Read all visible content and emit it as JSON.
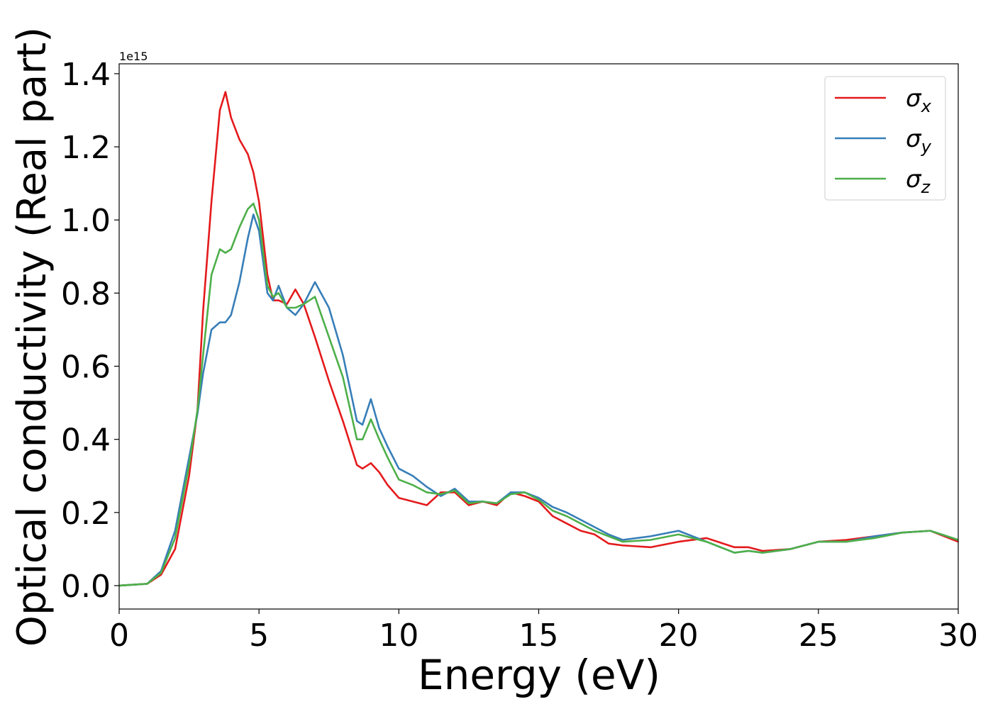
{
  "chart_data": {
    "type": "line",
    "xlabel": "Energy (eV)",
    "ylabel": "Optical conductivity (Real part)",
    "offset_label": "1e15",
    "x": [
      0,
      1,
      1.5,
      2,
      2.5,
      2.8,
      3,
      3.3,
      3.6,
      3.8,
      4,
      4.3,
      4.6,
      4.8,
      5,
      5.3,
      5.5,
      5.7,
      6,
      6.3,
      6.6,
      7,
      7.5,
      8,
      8.5,
      8.7,
      9,
      9.3,
      9.6,
      10,
      10.5,
      11,
      11.5,
      12,
      12.5,
      13,
      13.5,
      14,
      14.5,
      15,
      15.5,
      16,
      16.5,
      17,
      17.5,
      18,
      19,
      20,
      21,
      22,
      22.5,
      23,
      24,
      25,
      26,
      27,
      28,
      29,
      30
    ],
    "series": [
      {
        "name": "σx",
        "color": "#e41a1c",
        "values": [
          0,
          0.005,
          0.03,
          0.1,
          0.3,
          0.48,
          0.75,
          1.05,
          1.3,
          1.35,
          1.28,
          1.22,
          1.18,
          1.13,
          1.05,
          0.85,
          0.78,
          0.78,
          0.77,
          0.81,
          0.77,
          0.68,
          0.56,
          0.45,
          0.33,
          0.32,
          0.335,
          0.31,
          0.275,
          0.24,
          0.23,
          0.22,
          0.255,
          0.255,
          0.22,
          0.23,
          0.22,
          0.255,
          0.245,
          0.23,
          0.19,
          0.17,
          0.15,
          0.14,
          0.115,
          0.11,
          0.105,
          0.12,
          0.13,
          0.105,
          0.105,
          0.095,
          0.1,
          0.12,
          0.125,
          0.135,
          0.145,
          0.15,
          0.12
        ]
      },
      {
        "name": "σy",
        "color": "#377eb8",
        "values": [
          0,
          0.005,
          0.04,
          0.15,
          0.35,
          0.47,
          0.58,
          0.7,
          0.72,
          0.72,
          0.74,
          0.83,
          0.95,
          1.015,
          0.97,
          0.8,
          0.78,
          0.82,
          0.76,
          0.74,
          0.77,
          0.83,
          0.76,
          0.63,
          0.45,
          0.44,
          0.51,
          0.43,
          0.38,
          0.32,
          0.3,
          0.27,
          0.245,
          0.265,
          0.23,
          0.23,
          0.225,
          0.255,
          0.255,
          0.24,
          0.215,
          0.2,
          0.18,
          0.16,
          0.14,
          0.125,
          0.135,
          0.15,
          0.12,
          0.09,
          0.095,
          0.09,
          0.1,
          0.12,
          0.12,
          0.135,
          0.145,
          0.15,
          0.125
        ]
      },
      {
        "name": "σz",
        "color": "#4daf4a",
        "values": [
          0,
          0.005,
          0.035,
          0.13,
          0.33,
          0.48,
          0.63,
          0.85,
          0.92,
          0.91,
          0.92,
          0.98,
          1.03,
          1.045,
          1.0,
          0.82,
          0.79,
          0.8,
          0.76,
          0.76,
          0.77,
          0.79,
          0.68,
          0.57,
          0.4,
          0.4,
          0.455,
          0.4,
          0.35,
          0.29,
          0.275,
          0.255,
          0.25,
          0.26,
          0.225,
          0.23,
          0.225,
          0.25,
          0.255,
          0.235,
          0.205,
          0.19,
          0.17,
          0.15,
          0.135,
          0.12,
          0.125,
          0.14,
          0.12,
          0.09,
          0.095,
          0.09,
          0.1,
          0.12,
          0.12,
          0.13,
          0.145,
          0.15,
          0.125
        ]
      }
    ],
    "xlim": [
      0,
      30
    ],
    "xticks": [
      0,
      5,
      10,
      15,
      20,
      25,
      30
    ],
    "ylim": [
      -0.064,
      1.427
    ],
    "yticks": [
      {
        "value": 0,
        "label": "0.0"
      },
      0.2,
      0.4,
      0.6,
      0.8,
      {
        "value": 1,
        "label": "1.0"
      },
      1.2,
      1.4
    ],
    "grid": false,
    "legend": "upper right"
  }
}
